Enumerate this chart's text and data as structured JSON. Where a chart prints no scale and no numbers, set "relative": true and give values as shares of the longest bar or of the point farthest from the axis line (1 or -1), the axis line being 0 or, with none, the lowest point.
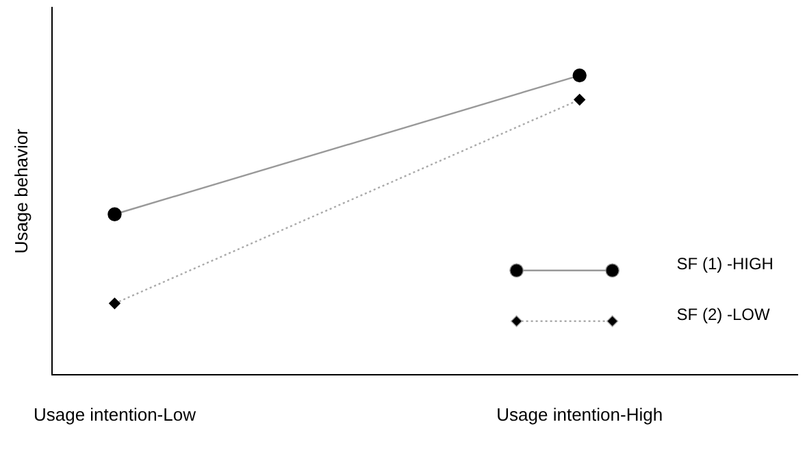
{
  "chart_data": {
    "type": "line",
    "relative": true,
    "ylabel": "Usage behavior",
    "categories": [
      "Usage intention-Low",
      "Usage intention-High"
    ],
    "legend": "bottom right",
    "grid": false,
    "series": [
      {
        "name": "SF (1) -HIGH",
        "color": "#999999",
        "values": [
          0.536,
          1
        ],
        "marker": "circle",
        "line_style": "solid"
      },
      {
        "name": "SF (2) -LOW",
        "color": "#aaaaaa",
        "values": [
          0.238,
          0.919
        ],
        "marker": "diamond",
        "line_style": "dotted"
      }
    ]
  }
}
